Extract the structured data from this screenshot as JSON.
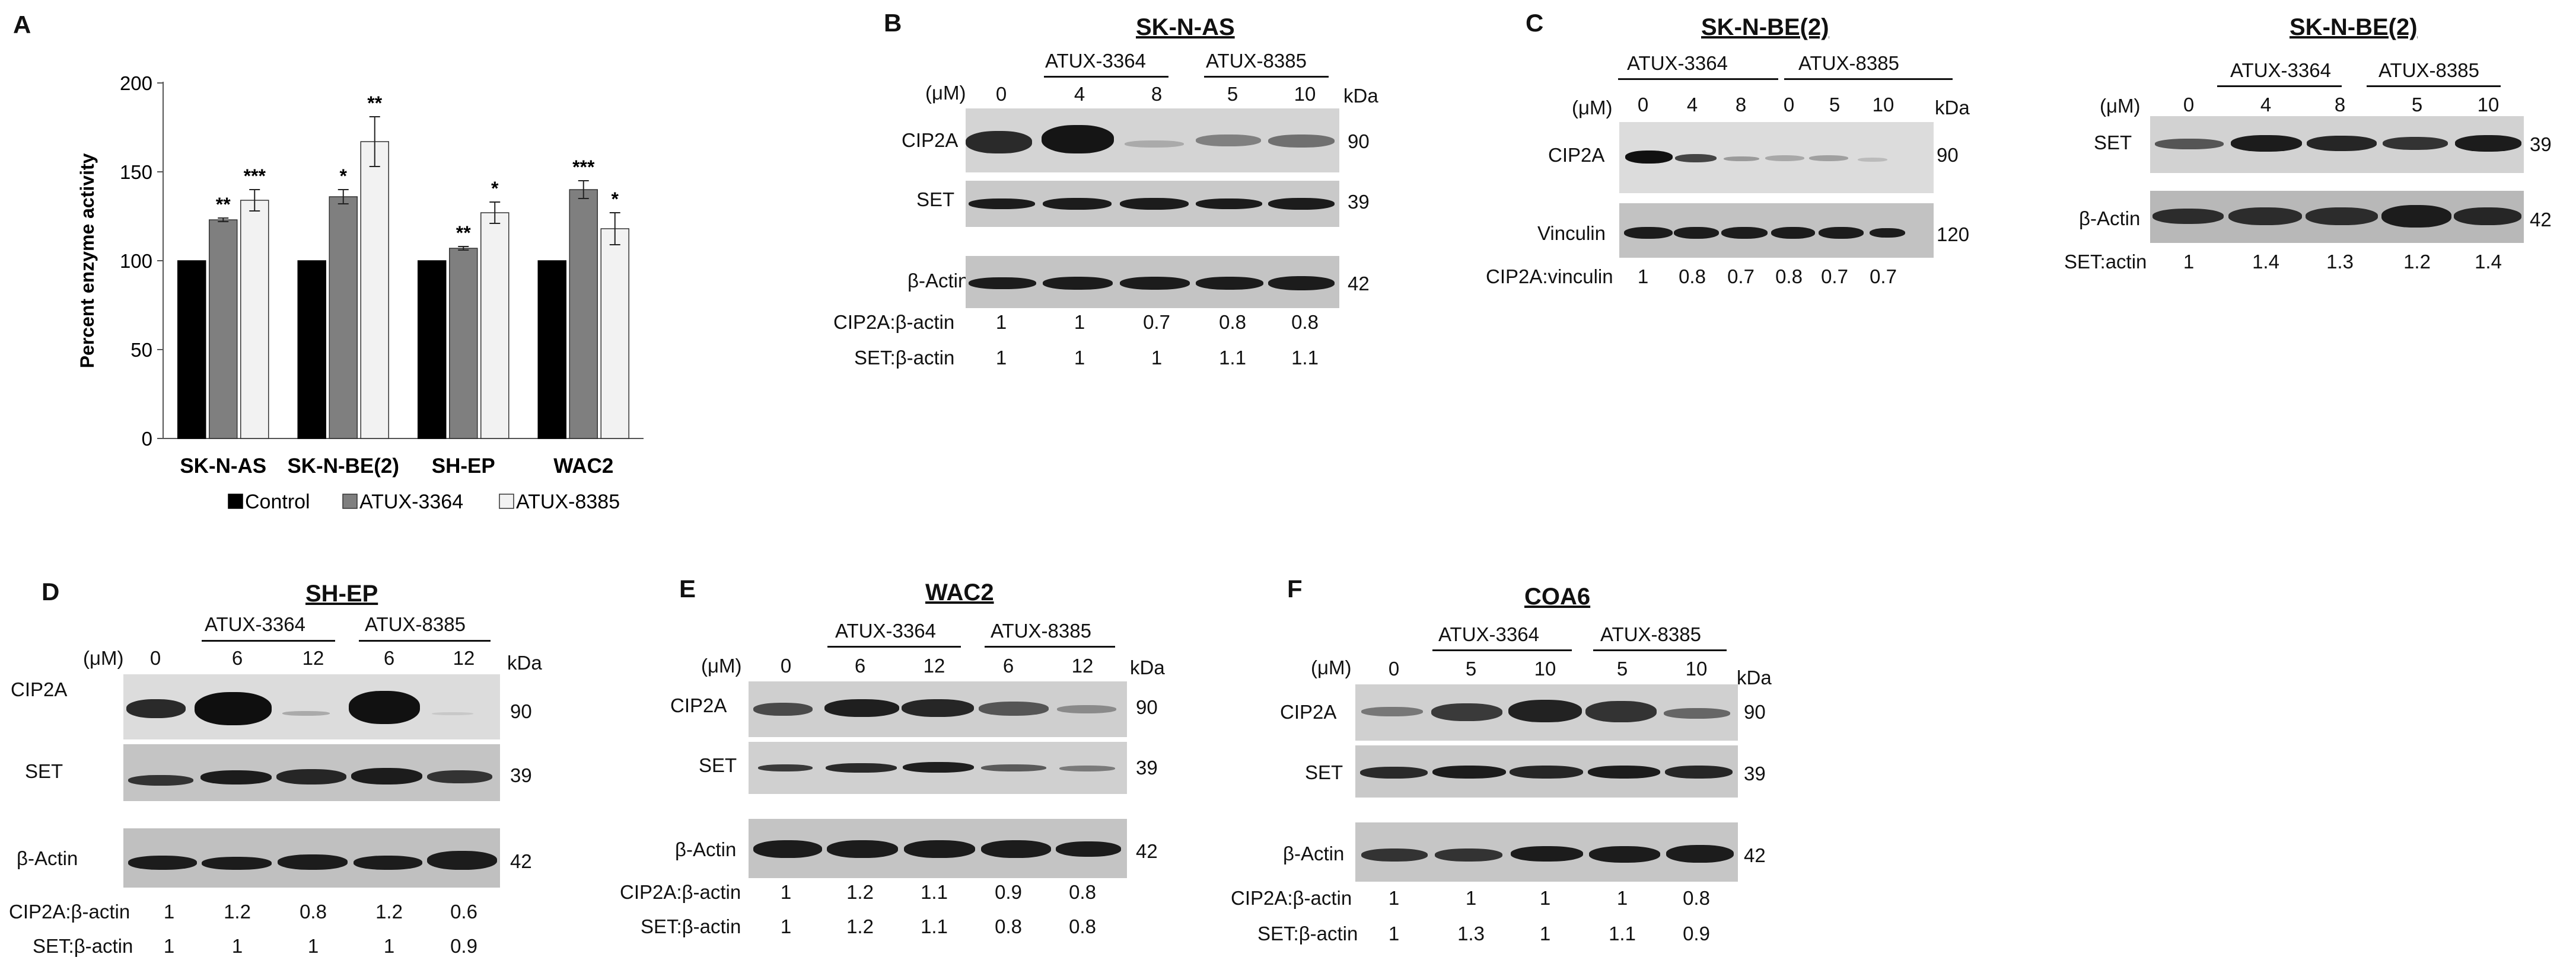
{
  "panelA": {
    "label": "A",
    "ylabel": "Percent enzyme activity",
    "legend": [
      "Control",
      "ATUX-3364",
      "ATUX-8385"
    ],
    "colors": [
      "#000000",
      "#7f7f7f",
      "#f2f2f2"
    ]
  },
  "chart_data": {
    "type": "bar",
    "categories": [
      "SK-N-AS",
      "SK-N-BE(2)",
      "SH-EP",
      "WAC2"
    ],
    "series": [
      {
        "name": "Control",
        "values": [
          100,
          100,
          100,
          100
        ],
        "errors": [
          0,
          0,
          0,
          0
        ],
        "signif": [
          "",
          "",
          "",
          ""
        ]
      },
      {
        "name": "ATUX-3364",
        "values": [
          123,
          136,
          107,
          140
        ],
        "errors": [
          1,
          4,
          1,
          5
        ],
        "signif": [
          "**",
          "*",
          "**",
          "***"
        ]
      },
      {
        "name": "ATUX-8385",
        "values": [
          134,
          167,
          127,
          118
        ],
        "errors": [
          6,
          14,
          6,
          9
        ],
        "signif": [
          "***",
          "**",
          "*",
          "*"
        ]
      }
    ],
    "title": "",
    "xlabel": "",
    "ylabel": "Percent enzyme activity",
    "ylim": [
      0,
      200
    ],
    "yticks": [
      "0",
      "50",
      "100",
      "150",
      "200"
    ],
    "legend_position": "bottom"
  },
  "common": {
    "um": "(μM)",
    "kda": "kDa",
    "atux3364": "ATUX-3364",
    "atux8385": "ATUX-8385"
  },
  "panelB": {
    "label": "B",
    "title": "SK-N-AS",
    "doses": [
      "0",
      "4",
      "8",
      "5",
      "10"
    ],
    "rows": [
      "CIP2A",
      "SET",
      "β-Actin"
    ],
    "kda": [
      "90",
      "39",
      "42"
    ],
    "q1label": "CIP2A:β-actin",
    "q1": [
      "1",
      "1",
      "0.7",
      "0.8",
      "0.8"
    ],
    "q2label": "SET:β-actin",
    "q2": [
      "1",
      "1",
      "1",
      "1.1",
      "1.1"
    ]
  },
  "panelC1": {
    "label": "C",
    "title": "SK-N-BE(2)",
    "doses": [
      "0",
      "4",
      "8",
      "0",
      "5",
      "10"
    ],
    "rows": [
      "CIP2A",
      "Vinculin"
    ],
    "kda": [
      "90",
      "120"
    ],
    "q1label": "CIP2A:vinculin",
    "q1": [
      "1",
      "0.8",
      "0.7",
      "0.8",
      "0.7",
      "0.7"
    ]
  },
  "panelC2": {
    "title": "SK-N-BE(2)",
    "doses": [
      "0",
      "4",
      "8",
      "5",
      "10"
    ],
    "rows": [
      "SET",
      "β-Actin"
    ],
    "kda": [
      "39",
      "42"
    ],
    "q1label": "SET:actin",
    "q1": [
      "1",
      "1.4",
      "1.3",
      "1.2",
      "1.4"
    ]
  },
  "panelD": {
    "label": "D",
    "title": "SH-EP",
    "doses": [
      "0",
      "6",
      "12",
      "6",
      "12"
    ],
    "rows": [
      "CIP2A",
      "SET",
      "β-Actin"
    ],
    "kda": [
      "90",
      "39",
      "42"
    ],
    "q1label": "CIP2A:β-actin",
    "q1": [
      "1",
      "1.2",
      "0.8",
      "1.2",
      "0.6"
    ],
    "q2label": "SET:β-actin",
    "q2": [
      "1",
      "1",
      "1",
      "1",
      "0.9"
    ]
  },
  "panelE": {
    "label": "E",
    "title": "WAC2",
    "doses": [
      "0",
      "6",
      "12",
      "6",
      "12"
    ],
    "rows": [
      "CIP2A",
      "SET",
      "β-Actin"
    ],
    "kda": [
      "90",
      "39",
      "42"
    ],
    "q1label": "CIP2A:β-actin",
    "q1": [
      "1",
      "1.2",
      "1.1",
      "0.9",
      "0.8"
    ],
    "q2label": "SET:β-actin",
    "q2": [
      "1",
      "1.2",
      "1.1",
      "0.8",
      "0.8"
    ]
  },
  "panelF": {
    "label": "F",
    "title": "COA6",
    "doses": [
      "0",
      "5",
      "10",
      "5",
      "10"
    ],
    "rows": [
      "CIP2A",
      "SET",
      "β-Actin"
    ],
    "kda": [
      "90",
      "39",
      "42"
    ],
    "q1label": "CIP2A:β-actin",
    "q1": [
      "1",
      "1",
      "1",
      "1",
      "0.8"
    ],
    "q2label": "SET:β-actin",
    "q2": [
      "1",
      "1.3",
      "1",
      "1.1",
      "0.9"
    ]
  }
}
